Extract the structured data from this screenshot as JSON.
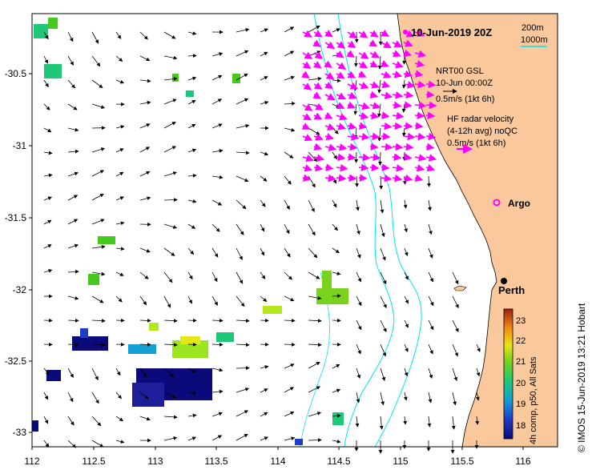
{
  "map": {
    "date_label": "10-Jun-2019 20Z",
    "scale_200m": "200m",
    "scale_1000m": "1000m",
    "model_name": "NRT00 GSL",
    "model_time": "10-Jun 00:00Z",
    "model_scale": "0.5m/s (1kt 6h)",
    "radar_title": "HF radar velocity",
    "radar_avg": "(4-12h avg) noQC",
    "radar_scale": "0.5m/s (1kt 6h)",
    "argo_label": "Argo",
    "city_label": "Perth",
    "credit": "© IMOS 15-Jun-2019 13:21 Hobart",
    "colorbar_label": "4h comp, p50, All Sats",
    "colorbar_ticks": [
      "18",
      "19",
      "20",
      "21",
      "22",
      "23"
    ],
    "y_ticks": [
      "-30.5",
      "-31",
      "-31.5",
      "-32",
      "-32.5",
      "-33"
    ],
    "x_ticks": [
      "112",
      "112.5",
      "113",
      "113.5",
      "114",
      "114.5",
      "115",
      "115.5",
      "116"
    ],
    "colors": {
      "land": "#f9c89c",
      "isobath_200": "#00e5ee",
      "isobath_1000": "#00e5ee",
      "radar_arrow": "#ff00ff",
      "model_arrow": "#000000"
    }
  }
}
